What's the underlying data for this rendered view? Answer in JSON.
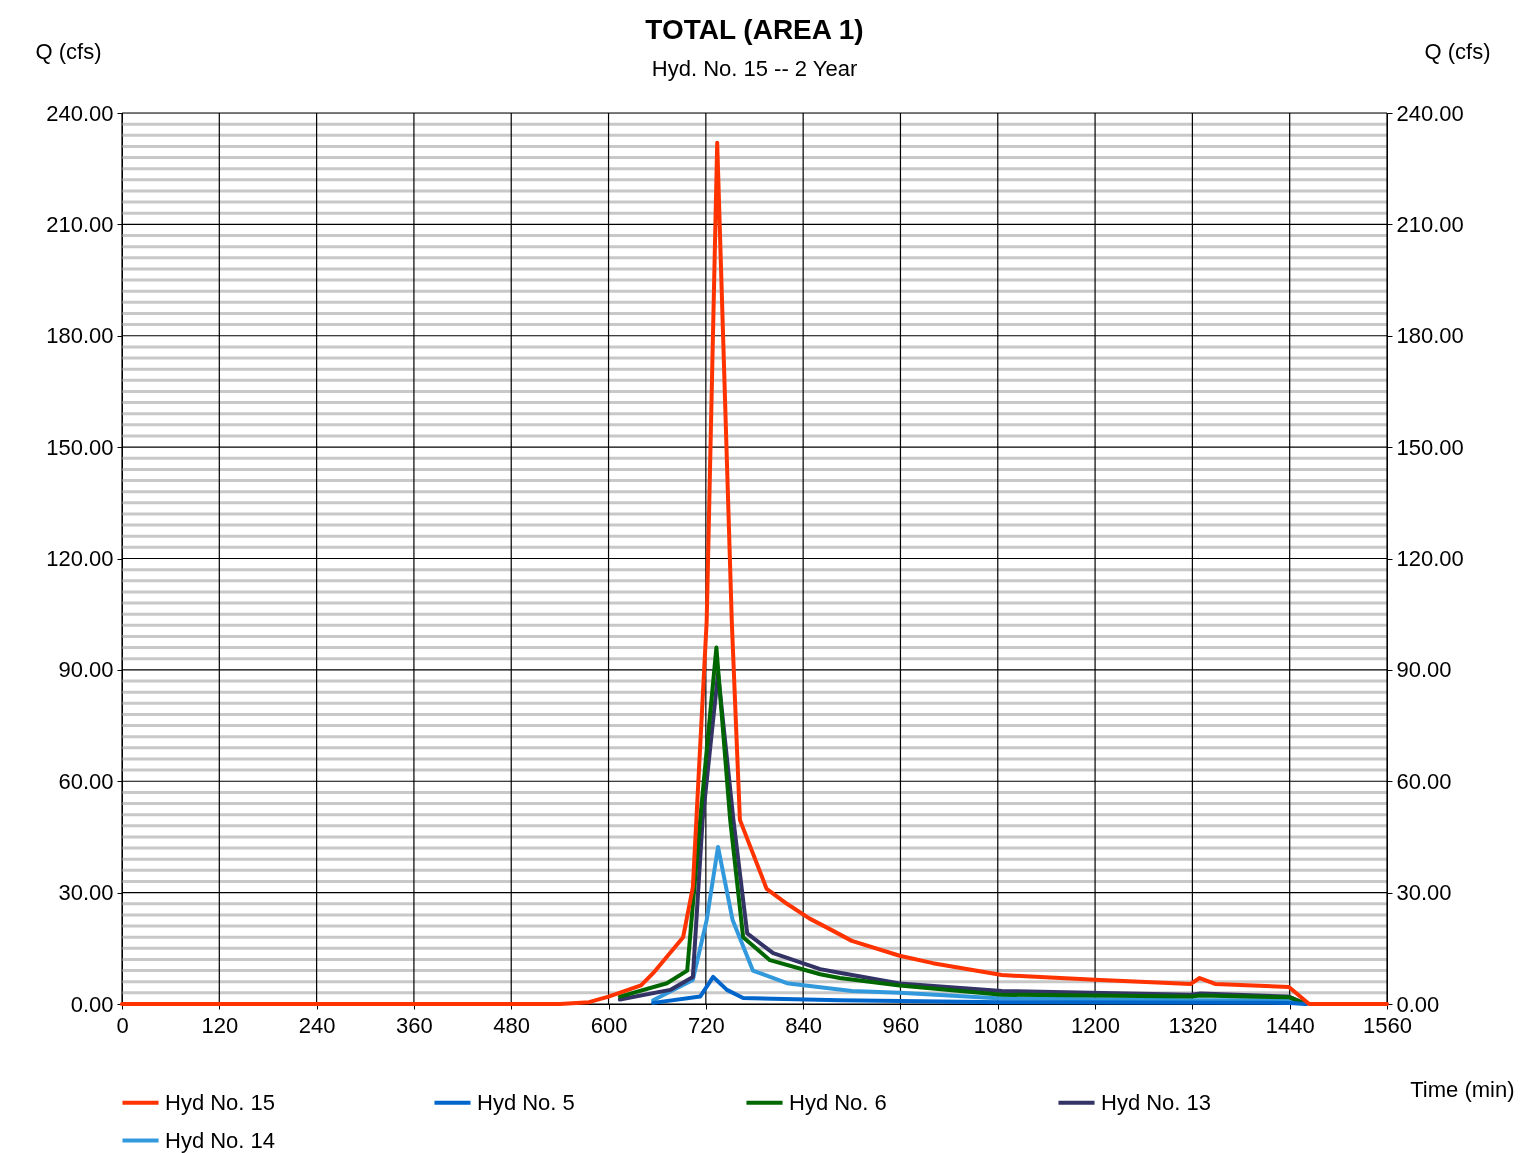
{
  "chart_data": {
    "type": "line",
    "title": "TOTAL (AREA 1)",
    "subtitle": "Hyd. No. 15 -- 2 Year",
    "xlabel": "Time (min)",
    "ylabel": "Q (cfs)",
    "y2label": "Q (cfs)",
    "xlim": [
      0,
      1560
    ],
    "xticks": [
      0,
      120,
      240,
      360,
      480,
      600,
      720,
      840,
      960,
      1080,
      1200,
      1320,
      1440,
      1560
    ],
    "ylim": [
      0,
      240
    ],
    "yticks": [
      {
        "value": 0,
        "label": "0.00"
      },
      {
        "value": 3,
        "label": null
      },
      {
        "value": 6,
        "label": null
      },
      {
        "value": 9,
        "label": null
      },
      {
        "value": 12,
        "label": null
      },
      {
        "value": 15,
        "label": null
      },
      {
        "value": 18,
        "label": null
      },
      {
        "value": 21,
        "label": null
      },
      {
        "value": 24,
        "label": null
      },
      {
        "value": 27,
        "label": null
      },
      {
        "value": 30,
        "label": "30.00"
      },
      {
        "value": 33,
        "label": null
      },
      {
        "value": 36,
        "label": null
      },
      {
        "value": 39,
        "label": null
      },
      {
        "value": 42,
        "label": null
      },
      {
        "value": 45,
        "label": null
      },
      {
        "value": 48,
        "label": null
      },
      {
        "value": 51,
        "label": null
      },
      {
        "value": 54,
        "label": null
      },
      {
        "value": 57,
        "label": null
      },
      {
        "value": 60,
        "label": "60.00"
      },
      {
        "value": 63,
        "label": null
      },
      {
        "value": 66,
        "label": null
      },
      {
        "value": 69,
        "label": null
      },
      {
        "value": 72,
        "label": null
      },
      {
        "value": 75,
        "label": null
      },
      {
        "value": 78,
        "label": null
      },
      {
        "value": 81,
        "label": null
      },
      {
        "value": 84,
        "label": null
      },
      {
        "value": 87,
        "label": null
      },
      {
        "value": 90,
        "label": "90.00"
      },
      {
        "value": 93,
        "label": null
      },
      {
        "value": 96,
        "label": null
      },
      {
        "value": 99,
        "label": null
      },
      {
        "value": 102,
        "label": null
      },
      {
        "value": 105,
        "label": null
      },
      {
        "value": 108,
        "label": null
      },
      {
        "value": 111,
        "label": null
      },
      {
        "value": 114,
        "label": null
      },
      {
        "value": 117,
        "label": null
      },
      {
        "value": 120,
        "label": "120.00"
      },
      {
        "value": 123,
        "label": null
      },
      {
        "value": 126,
        "label": null
      },
      {
        "value": 129,
        "label": null
      },
      {
        "value": 132,
        "label": null
      },
      {
        "value": 135,
        "label": null
      },
      {
        "value": 138,
        "label": null
      },
      {
        "value": 141,
        "label": null
      },
      {
        "value": 144,
        "label": null
      },
      {
        "value": 147,
        "label": null
      },
      {
        "value": 150,
        "label": "150.00"
      },
      {
        "value": 153,
        "label": null
      },
      {
        "value": 156,
        "label": null
      },
      {
        "value": 159,
        "label": null
      },
      {
        "value": 162,
        "label": null
      },
      {
        "value": 165,
        "label": null
      },
      {
        "value": 168,
        "label": null
      },
      {
        "value": 171,
        "label": null
      },
      {
        "value": 174,
        "label": null
      },
      {
        "value": 177,
        "label": null
      },
      {
        "value": 180,
        "label": "180.00"
      },
      {
        "value": 183,
        "label": null
      },
      {
        "value": 186,
        "label": null
      },
      {
        "value": 189,
        "label": null
      },
      {
        "value": 192,
        "label": null
      },
      {
        "value": 195,
        "label": null
      },
      {
        "value": 198,
        "label": null
      },
      {
        "value": 201,
        "label": null
      },
      {
        "value": 204,
        "label": null
      },
      {
        "value": 207,
        "label": null
      },
      {
        "value": 210,
        "label": "210.00"
      },
      {
        "value": 213,
        "label": null
      },
      {
        "value": 216,
        "label": null
      },
      {
        "value": 219,
        "label": null
      },
      {
        "value": 222,
        "label": null
      },
      {
        "value": 225,
        "label": null
      },
      {
        "value": 228,
        "label": null
      },
      {
        "value": 231,
        "label": null
      },
      {
        "value": 234,
        "label": null
      },
      {
        "value": 237,
        "label": null
      },
      {
        "value": 240,
        "label": "240.00"
      }
    ],
    "y2lim": [
      0,
      240
    ],
    "y2ticks": [
      {
        "value": 0,
        "label": "0.00"
      },
      {
        "value": 30,
        "label": "30.00"
      },
      {
        "value": 60,
        "label": "60.00"
      },
      {
        "value": 90,
        "label": "90.00"
      },
      {
        "value": 120,
        "label": "120.00"
      },
      {
        "value": 150,
        "label": "150.00"
      },
      {
        "value": 180,
        "label": "180.00"
      },
      {
        "value": 210,
        "label": "210.00"
      },
      {
        "value": 240,
        "label": "240.00"
      }
    ],
    "grid": true,
    "legend": "bottom",
    "marker": "none",
    "line_style": "solid",
    "series": [
      {
        "name": "Hyd No. 15",
        "color": "#ff3300",
        "x": [
          0,
          540,
          576,
          600,
          640,
          655,
          692,
          704,
          721,
          734,
          752,
          762,
          795,
          820,
          848,
          870,
          900,
          959,
          1000,
          1085,
          1200,
          1318,
          1329,
          1348,
          1439,
          1464,
          1560
        ],
        "values": [
          0,
          0,
          0.5,
          2,
          5,
          8.3,
          18,
          31.5,
          103,
          232,
          103,
          49.6,
          31,
          27,
          23,
          20.5,
          17,
          13,
          11,
          7.8,
          6.5,
          5.4,
          7,
          5.4,
          4.6,
          0,
          0
        ]
      },
      {
        "name": "Hyd No. 5",
        "color": "#0066cc",
        "x": [
          655,
          713,
          729,
          746,
          766,
          885,
          1085,
          1440,
          1460
        ],
        "values": [
          0.3,
          2,
          7.3,
          3.8,
          1.6,
          1,
          0.5,
          0.3,
          0
        ]
      },
      {
        "name": "Hyd No. 6",
        "color": "#006600",
        "x": [
          614,
          672,
          697,
          713,
          733,
          750,
          766,
          799,
          861,
          885,
          959,
          1085,
          1318,
          1330,
          1440,
          1460
        ],
        "values": [
          2,
          5.6,
          9,
          49.6,
          96,
          49.6,
          18,
          11.8,
          8,
          7,
          5,
          2.5,
          2,
          2.3,
          1.8,
          0
        ]
      },
      {
        "name": "Hyd No. 13",
        "color": "#333366",
        "x": [
          614,
          676,
          704,
          716,
          735,
          754,
          771,
          803,
          861,
          885,
          959,
          1085,
          1318,
          1330,
          1439,
          1460
        ],
        "values": [
          1.2,
          3.8,
          7.3,
          49.6,
          89,
          49.6,
          19,
          13.7,
          9.4,
          8.4,
          5.5,
          3.5,
          2.5,
          2.8,
          2,
          0
        ]
      },
      {
        "name": "Hyd No. 14",
        "color": "#3399dd",
        "x": [
          655,
          704,
          721,
          735,
          753,
          778,
          820,
          861,
          900,
          959,
          1085,
          1318,
          1439,
          1460
        ],
        "values": [
          1,
          6.5,
          22.6,
          42.3,
          22.6,
          9,
          5.6,
          4.5,
          3.5,
          3,
          1.5,
          1,
          1,
          0
        ]
      }
    ]
  }
}
